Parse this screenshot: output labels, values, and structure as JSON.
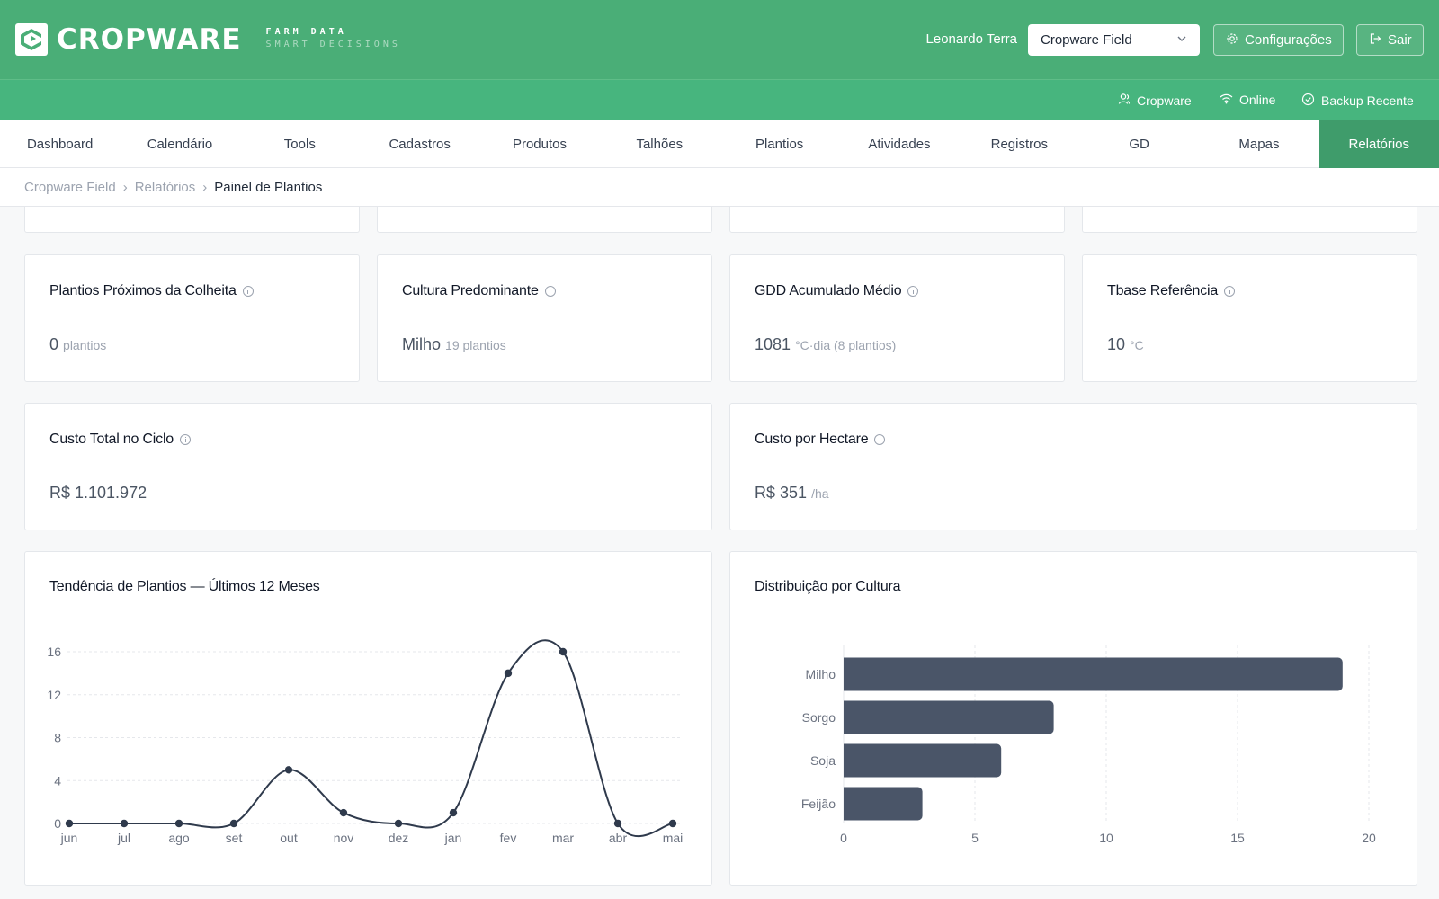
{
  "header": {
    "brand": "CROPWARE",
    "tagline_1": "FARM DATA",
    "tagline_2": "SMART DECISIONS",
    "user_name": "Leonardo Terra",
    "farm_selected": "Cropware Field",
    "config_label": "Configurações",
    "logout_label": "Sair"
  },
  "status": {
    "account": "Cropware",
    "connection": "Online",
    "backup": "Backup Recente"
  },
  "nav": {
    "items": [
      "Dashboard",
      "Calendário",
      "Tools",
      "Cadastros",
      "Produtos",
      "Talhões",
      "Plantios",
      "Atividades",
      "Registros",
      "GD",
      "Mapas",
      "Relatórios"
    ],
    "active": "Relatórios"
  },
  "breadcrumb": {
    "items": [
      "Cropware Field",
      "Relatórios"
    ],
    "current": "Painel de Plantios"
  },
  "kpis": {
    "near_harvest": {
      "title": "Plantios Próximos da Colheita",
      "value": "0",
      "unit": "plantios"
    },
    "main_crop": {
      "title": "Cultura Predominante",
      "value": "Milho",
      "unit": "19 plantios"
    },
    "gdd": {
      "title": "GDD Acumulado Médio",
      "value": "1081",
      "unit": "°C·dia (8 plantios)"
    },
    "tbase": {
      "title": "Tbase Referência",
      "value": "10",
      "unit": "°C"
    },
    "total_cost": {
      "title": "Custo Total no Ciclo",
      "value": "R$ 1.101.972",
      "unit": ""
    },
    "cost_ha": {
      "title": "Custo por Hectare",
      "value": "R$ 351",
      "unit": "/ha"
    }
  },
  "chart_data": [
    {
      "type": "line",
      "title": "Tendência de Plantios — Últimos 12 Meses",
      "categories": [
        "jun",
        "jul",
        "ago",
        "set",
        "out",
        "nov",
        "dez",
        "jan",
        "fev",
        "mar",
        "abr",
        "mai"
      ],
      "values": [
        0,
        0,
        0,
        0,
        5,
        1,
        0,
        1,
        14,
        16,
        0,
        0
      ],
      "ylim": [
        0,
        16
      ],
      "yticks": [
        0,
        4,
        8,
        12,
        16
      ],
      "grid": true,
      "color": "#2f3a4c"
    },
    {
      "type": "bar",
      "orientation": "horizontal",
      "title": "Distribuição por Cultura",
      "categories": [
        "Milho",
        "Sorgo",
        "Soja",
        "Feijão"
      ],
      "values": [
        19,
        8,
        6,
        3
      ],
      "xlim": [
        0,
        20
      ],
      "xticks": [
        0,
        5,
        10,
        15,
        20
      ],
      "grid": true,
      "color": "#4a5568"
    }
  ]
}
